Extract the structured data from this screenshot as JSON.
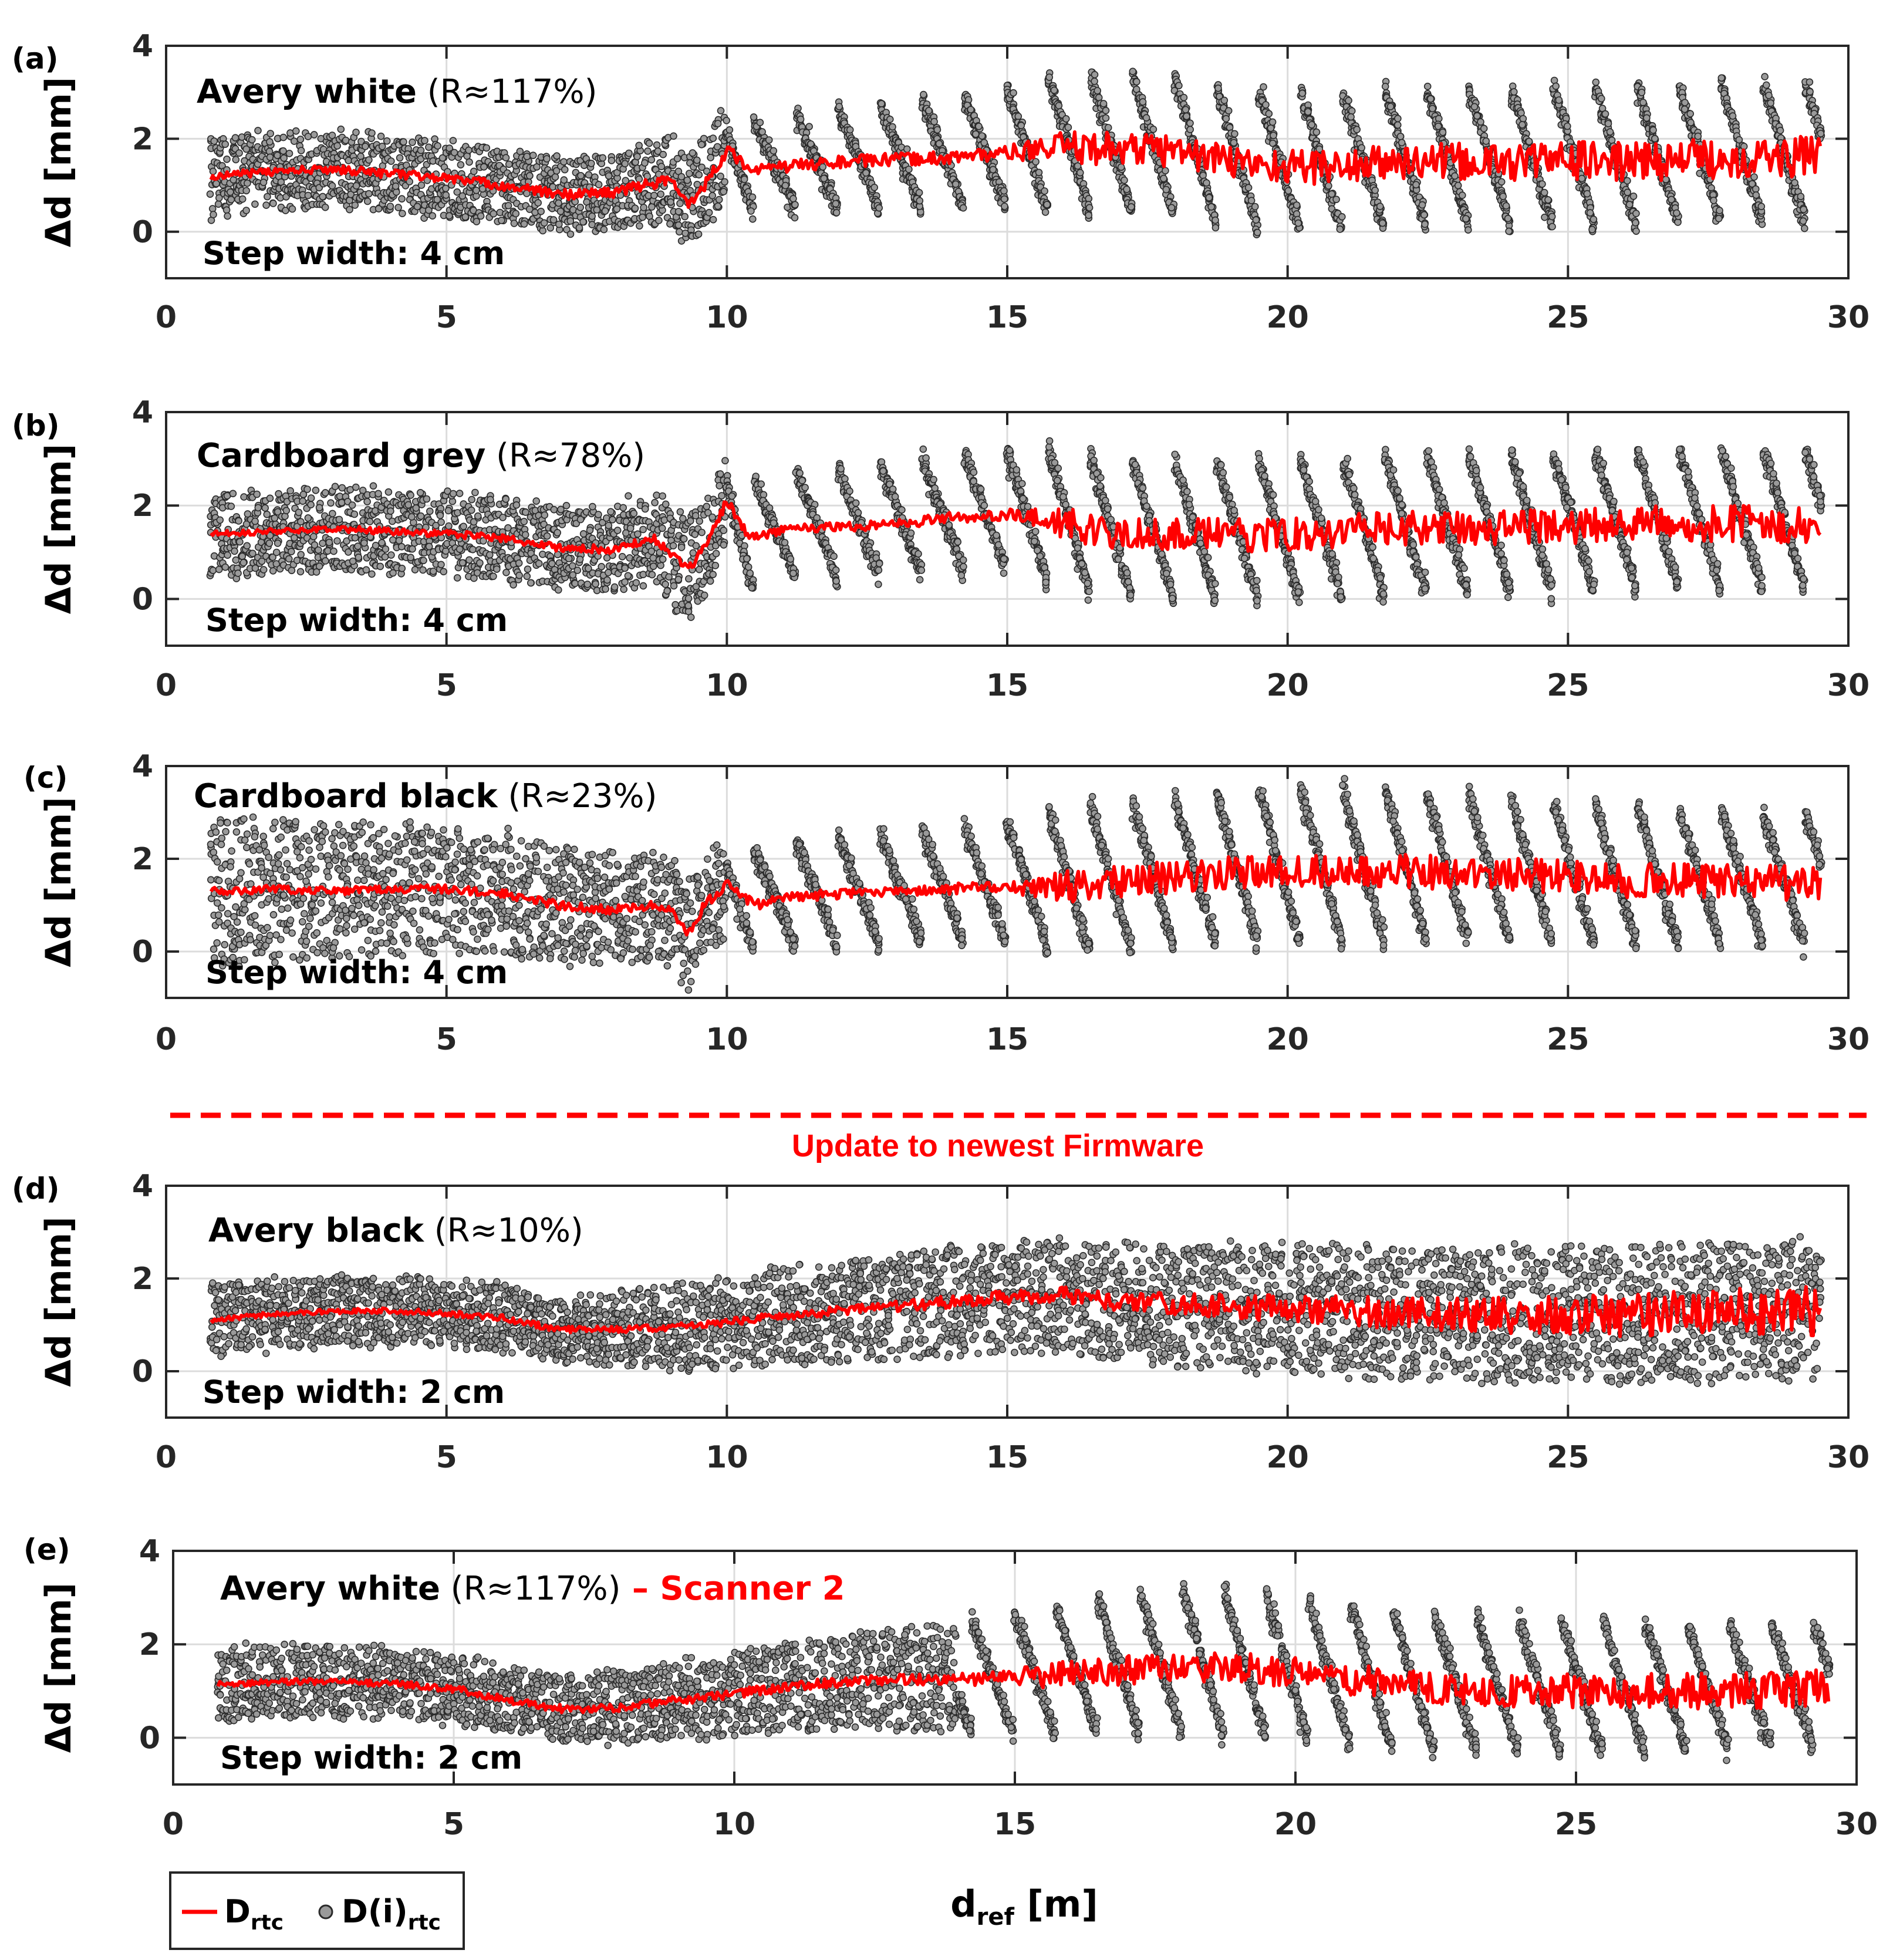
{
  "figure": {
    "separator_text": "Update to newest Firmware",
    "xlabel_main": "d",
    "xlabel_sub": "ref",
    "xlabel_unit": " [m]",
    "legend": [
      {
        "label_main": "D",
        "label_sub": "rtc",
        "label_suffix": "",
        "type": "line",
        "color": "#ff0000"
      },
      {
        "label_main": "D(i)",
        "label_sub": "rtc",
        "label_suffix": "",
        "type": "marker",
        "color": "#808080"
      }
    ]
  },
  "chart_data": [
    {
      "type": "scatter",
      "panel_label": "(a)",
      "ylabel": "Δd [mm]",
      "title_bold": "Avery white",
      "title_normal": " (R≈117%)",
      "title_red": "",
      "step_text": "Step width: 4 cm",
      "xlim": [
        0,
        30
      ],
      "ylim": [
        -1,
        4
      ],
      "xticks": [
        0,
        5,
        10,
        15,
        20,
        25,
        30
      ],
      "yticks": [
        0,
        2,
        4
      ],
      "grid": true,
      "x_start": 0.8,
      "x_end": 29.5,
      "series": [
        {
          "name": "D(i)rtc",
          "kind": "points",
          "color": "#808080",
          "spread_mm": [
            [
              0.8,
              1.7
            ],
            [
              8,
              1.6
            ],
            [
              9,
              2.0
            ],
            [
              10,
              2.0
            ],
            [
              15,
              2.5
            ],
            [
              16,
              3.0
            ],
            [
              29.5,
              3.0
            ]
          ],
          "stripe_onset_m": 10
        },
        {
          "name": "Drtc",
          "kind": "line",
          "color": "#ff0000",
          "x": [
            0.8,
            2,
            3,
            4,
            5,
            6,
            7,
            8,
            8.5,
            9,
            9.3,
            9.6,
            10,
            10.5,
            11,
            12,
            13,
            14,
            15,
            16,
            17,
            18,
            19,
            20,
            21,
            22,
            23,
            24,
            25,
            26,
            27,
            28,
            29,
            29.5
          ],
          "y": [
            1.2,
            1.3,
            1.35,
            1.25,
            1.15,
            1.0,
            0.8,
            0.85,
            1.0,
            1.1,
            0.6,
            1.0,
            1.75,
            1.3,
            1.4,
            1.5,
            1.55,
            1.6,
            1.7,
            1.8,
            1.8,
            1.75,
            1.5,
            1.4,
            1.4,
            1.5,
            1.5,
            1.5,
            1.55,
            1.5,
            1.55,
            1.6,
            1.6,
            1.6
          ],
          "noise_mm": [
            [
              0.8,
              0.08
            ],
            [
              15,
              0.15
            ],
            [
              16,
              0.35
            ],
            [
              29.5,
              0.45
            ]
          ]
        }
      ]
    },
    {
      "type": "scatter",
      "panel_label": "(b)",
      "ylabel": "Δd [mm]",
      "title_bold": "Cardboard grey",
      "title_normal": " (R≈78%)",
      "title_red": "",
      "step_text": "Step width: 4 cm",
      "xlim": [
        0,
        30
      ],
      "ylim": [
        -1,
        4
      ],
      "xticks": [
        0,
        5,
        10,
        15,
        20,
        25,
        30
      ],
      "yticks": [
        0,
        2,
        4
      ],
      "grid": true,
      "x_start": 0.8,
      "x_end": 29.5,
      "series": [
        {
          "name": "D(i)rtc",
          "kind": "points",
          "color": "#808080",
          "spread_mm": [
            [
              0.8,
              1.8
            ],
            [
              8,
              1.8
            ],
            [
              9,
              2.2
            ],
            [
              10,
              2.2
            ],
            [
              15,
              2.6
            ],
            [
              16,
              3.0
            ],
            [
              29.5,
              3.0
            ]
          ],
          "stripe_onset_m": 10
        },
        {
          "name": "Drtc",
          "kind": "line",
          "color": "#ff0000",
          "x": [
            0.8,
            2,
            3,
            4,
            5,
            6,
            7,
            8,
            8.7,
            9,
            9.3,
            9.6,
            10,
            10.4,
            11,
            12,
            13,
            14,
            15,
            16,
            17,
            18,
            19,
            20,
            21,
            22,
            23,
            24,
            25,
            26,
            27,
            28,
            29,
            29.5
          ],
          "y": [
            1.4,
            1.45,
            1.5,
            1.45,
            1.4,
            1.3,
            1.1,
            1.05,
            1.3,
            1.0,
            0.6,
            1.1,
            2.1,
            1.3,
            1.5,
            1.55,
            1.6,
            1.75,
            1.8,
            1.6,
            1.4,
            1.4,
            1.35,
            1.4,
            1.45,
            1.5,
            1.5,
            1.55,
            1.55,
            1.6,
            1.6,
            1.6,
            1.6,
            1.6
          ],
          "noise_mm": [
            [
              0.8,
              0.06
            ],
            [
              15,
              0.12
            ],
            [
              16,
              0.35
            ],
            [
              29.5,
              0.4
            ]
          ]
        }
      ]
    },
    {
      "type": "scatter",
      "panel_label": "(c)",
      "ylabel": "Δd [mm]",
      "title_bold": "Cardboard black",
      "title_normal": " (R≈23%)",
      "title_red": "",
      "step_text": "Step width: 4 cm",
      "xlim": [
        0,
        30
      ],
      "ylim": [
        -1,
        4
      ],
      "xticks": [
        0,
        5,
        10,
        15,
        20,
        25,
        30
      ],
      "yticks": [
        0,
        2,
        4
      ],
      "grid": true,
      "x_start": 0.8,
      "x_end": 29.5,
      "series": [
        {
          "name": "D(i)rtc",
          "kind": "points",
          "color": "#808080",
          "spread_mm": [
            [
              0.8,
              3.2
            ],
            [
              8,
              2.4
            ],
            [
              9,
              2.4
            ],
            [
              10,
              2.2
            ],
            [
              15,
              2.6
            ],
            [
              16,
              3.2
            ],
            [
              20,
              3.4
            ],
            [
              29.5,
              2.8
            ]
          ],
          "stripe_onset_m": 10
        },
        {
          "name": "Drtc",
          "kind": "line",
          "color": "#ff0000",
          "x": [
            0.8,
            2,
            3,
            4,
            5,
            6,
            7,
            8,
            8.7,
            9,
            9.3,
            9.6,
            10,
            10.5,
            11,
            12,
            13,
            14,
            15,
            16,
            17,
            18,
            19,
            20,
            21,
            22,
            23,
            24,
            25,
            26,
            27,
            28,
            29,
            29.5
          ],
          "y": [
            1.3,
            1.35,
            1.3,
            1.35,
            1.35,
            1.25,
            1.0,
            0.9,
            1.0,
            0.9,
            0.35,
            1.0,
            1.45,
            1.0,
            1.15,
            1.25,
            1.3,
            1.35,
            1.4,
            1.4,
            1.5,
            1.6,
            1.7,
            1.75,
            1.75,
            1.75,
            1.7,
            1.65,
            1.6,
            1.55,
            1.5,
            1.5,
            1.45,
            1.45
          ],
          "noise_mm": [
            [
              0.8,
              0.08
            ],
            [
              15,
              0.12
            ],
            [
              16,
              0.35
            ],
            [
              29.5,
              0.4
            ]
          ]
        }
      ]
    },
    {
      "type": "scatter",
      "panel_label": "(d)",
      "ylabel": "Δd [mm]",
      "title_bold": "Avery black",
      "title_normal": " (R≈10%)",
      "title_red": "",
      "step_text": "Step width: 2 cm",
      "xlim": [
        0,
        30
      ],
      "ylim": [
        -1,
        4
      ],
      "xticks": [
        0,
        5,
        10,
        15,
        20,
        25,
        30
      ],
      "yticks": [
        0,
        2,
        4
      ],
      "grid": true,
      "x_start": 0.8,
      "x_end": 29.5,
      "series": [
        {
          "name": "D(i)rtc",
          "kind": "points",
          "color": "#808080",
          "spread_mm": [
            [
              0.8,
              1.5
            ],
            [
              7,
              1.4
            ],
            [
              10,
              2.0
            ],
            [
              15,
              2.4
            ],
            [
              20,
              2.8
            ],
            [
              29.5,
              3.0
            ]
          ],
          "stripe_onset_m": 99
        },
        {
          "name": "Drtc",
          "kind": "line",
          "color": "#ff0000",
          "x": [
            0.8,
            2,
            3,
            4,
            5,
            6,
            7,
            8,
            9,
            10,
            11,
            12,
            13,
            14,
            15,
            16,
            17,
            18,
            19,
            20,
            21,
            22,
            23,
            24,
            25,
            26,
            27,
            28,
            29,
            29.5
          ],
          "y": [
            1.1,
            1.25,
            1.3,
            1.3,
            1.25,
            1.15,
            0.9,
            0.9,
            0.95,
            1.05,
            1.2,
            1.3,
            1.4,
            1.5,
            1.6,
            1.65,
            1.5,
            1.45,
            1.4,
            1.35,
            1.3,
            1.25,
            1.2,
            1.2,
            1.2,
            1.2,
            1.25,
            1.3,
            1.3,
            1.3
          ],
          "noise_mm": [
            [
              0.8,
              0.05
            ],
            [
              10,
              0.08
            ],
            [
              15,
              0.15
            ],
            [
              20,
              0.3
            ],
            [
              29.5,
              0.55
            ]
          ]
        }
      ]
    },
    {
      "type": "scatter",
      "panel_label": "(e)",
      "ylabel": "Δd [mm]",
      "title_bold": "Avery white",
      "title_normal": " (R≈117%)",
      "title_red": " – Scanner 2",
      "step_text": "Step width: 2 cm",
      "xlim": [
        0,
        30
      ],
      "ylim": [
        -1,
        4
      ],
      "xticks": [
        0,
        5,
        10,
        15,
        20,
        25,
        30
      ],
      "yticks": [
        0,
        2,
        4
      ],
      "grid": true,
      "x_start": 0.8,
      "x_end": 29.5,
      "series": [
        {
          "name": "D(i)rtc",
          "kind": "points",
          "color": "#808080",
          "spread_mm": [
            [
              0.8,
              1.6
            ],
            [
              7,
              1.4
            ],
            [
              12,
              2.0
            ],
            [
              15,
              2.6
            ],
            [
              18,
              3.2
            ],
            [
              29.5,
              2.6
            ]
          ],
          "stripe_onset_m": 14
        },
        {
          "name": "Drtc",
          "kind": "line",
          "color": "#ff0000",
          "x": [
            0.8,
            2,
            3,
            4,
            5,
            6,
            7,
            8,
            9,
            10,
            11,
            12,
            13,
            14,
            15,
            16,
            17,
            18,
            19,
            20,
            21,
            22,
            23,
            24,
            25,
            26,
            27,
            28,
            29,
            29.5
          ],
          "y": [
            1.15,
            1.2,
            1.2,
            1.15,
            1.05,
            0.8,
            0.6,
            0.65,
            0.8,
            0.95,
            1.1,
            1.2,
            1.25,
            1.25,
            1.3,
            1.35,
            1.45,
            1.5,
            1.5,
            1.4,
            1.25,
            1.1,
            1.05,
            1.0,
            1.0,
            1.0,
            1.0,
            1.0,
            1.05,
            1.05
          ],
          "noise_mm": [
            [
              0.8,
              0.06
            ],
            [
              14,
              0.12
            ],
            [
              16,
              0.3
            ],
            [
              29.5,
              0.4
            ]
          ]
        }
      ]
    }
  ]
}
